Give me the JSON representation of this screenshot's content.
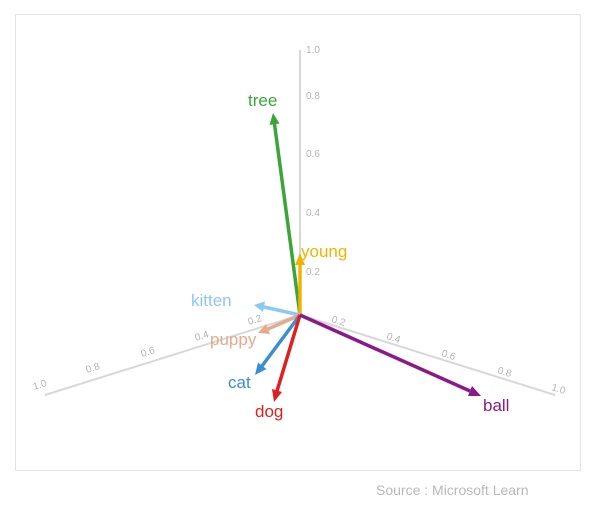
{
  "axes": {
    "z_ticks": [
      "1.0",
      "0.8",
      "0.6",
      "0.4",
      "0.2"
    ],
    "left_ticks": [
      "1.0",
      "0.8",
      "0.6",
      "0.4",
      "0.2"
    ],
    "right_ticks": [
      "0.2",
      "0.4",
      "0.6",
      "0.8",
      "1.0"
    ]
  },
  "vectors": [
    {
      "word": "tree",
      "color": "#3aa63a"
    },
    {
      "word": "young",
      "color": "#f0b400"
    },
    {
      "word": "kitten",
      "color": "#8dc8f0"
    },
    {
      "word": "puppy",
      "color": "#e6a98c"
    },
    {
      "word": "cat",
      "color": "#3a8fd0"
    },
    {
      "word": "dog",
      "color": "#e02020"
    },
    {
      "word": "ball",
      "color": "#8a1a8a"
    }
  ],
  "source": "Source : Microsoft Learn"
}
